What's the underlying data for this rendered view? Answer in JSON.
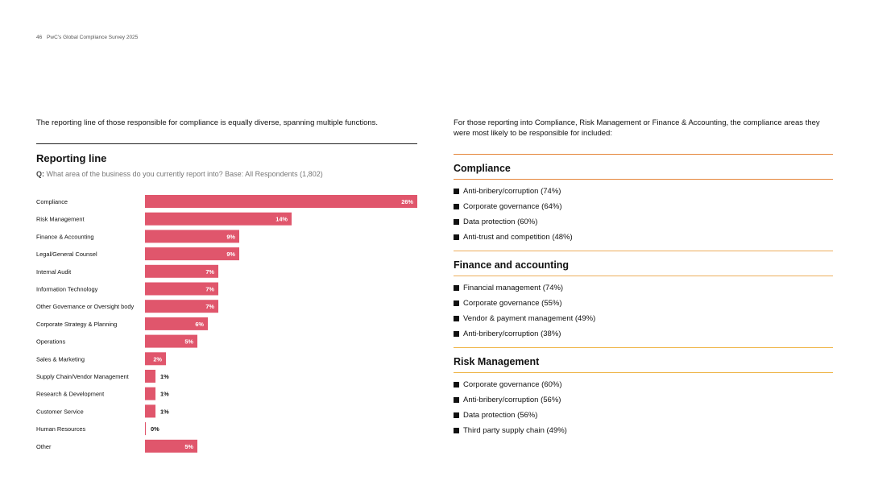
{
  "header": {
    "page_number": "46",
    "title": "PwC's Global Compliance Survey 2025"
  },
  "left": {
    "intro": "The reporting line of those responsible for compliance is equally diverse, spanning multiple functions.",
    "chart_title": "Reporting line",
    "question_label": "Q:",
    "question_text": " What area of the business do you currently report into? Base: All Respondents (1,802)"
  },
  "chart_data": {
    "type": "bar",
    "orientation": "horizontal",
    "title": "Reporting line",
    "categories": [
      "Compliance",
      "Risk Management",
      "Finance & Accounting",
      "Legal/General Counsel",
      "Internal Audit",
      "Information Technology",
      "Other Governance or Oversight body",
      "Corporate Strategy & Planning",
      "Operations",
      "Sales & Marketing",
      "Supply Chain/Vendor Management",
      "Research & Development",
      "Customer Service",
      "Human Resources",
      "Other"
    ],
    "values": [
      26,
      14,
      9,
      9,
      7,
      7,
      7,
      6,
      5,
      2,
      1,
      1,
      1,
      0,
      5
    ],
    "labels": [
      "26%",
      "14%",
      "9%",
      "9%",
      "7%",
      "7%",
      "7%",
      "6%",
      "5%",
      "2%",
      "1%",
      "1%",
      "1%",
      "0%",
      "5%"
    ],
    "unit": "%",
    "xlim": [
      0,
      26
    ],
    "color": "#e0566c"
  },
  "right": {
    "intro": "For those reporting into Compliance, Risk Management or Finance & Accounting, the compliance areas they were most likely to be responsible for included:",
    "sections": [
      {
        "title": "Compliance",
        "items": [
          "Anti-bribery/corruption (74%)",
          "Corporate governance (64%)",
          "Data protection (60%)",
          "Anti-trust and competition (48%)"
        ]
      },
      {
        "title": "Finance and accounting",
        "items": [
          "Financial management (74%)",
          "Corporate governance (55%)",
          "Vendor & payment management (49%)",
          "Anti-bribery/corruption (38%)"
        ]
      },
      {
        "title": "Risk Management",
        "items": [
          "Corporate governance (60%)",
          "Anti-bribery/corruption (56%)",
          "Data protection (56%)",
          "Third party supply chain (49%)"
        ]
      }
    ]
  },
  "colors": {
    "bar": "#e0566c",
    "rule_orange": "#e5863a",
    "rule_gold": "#efb64a"
  }
}
